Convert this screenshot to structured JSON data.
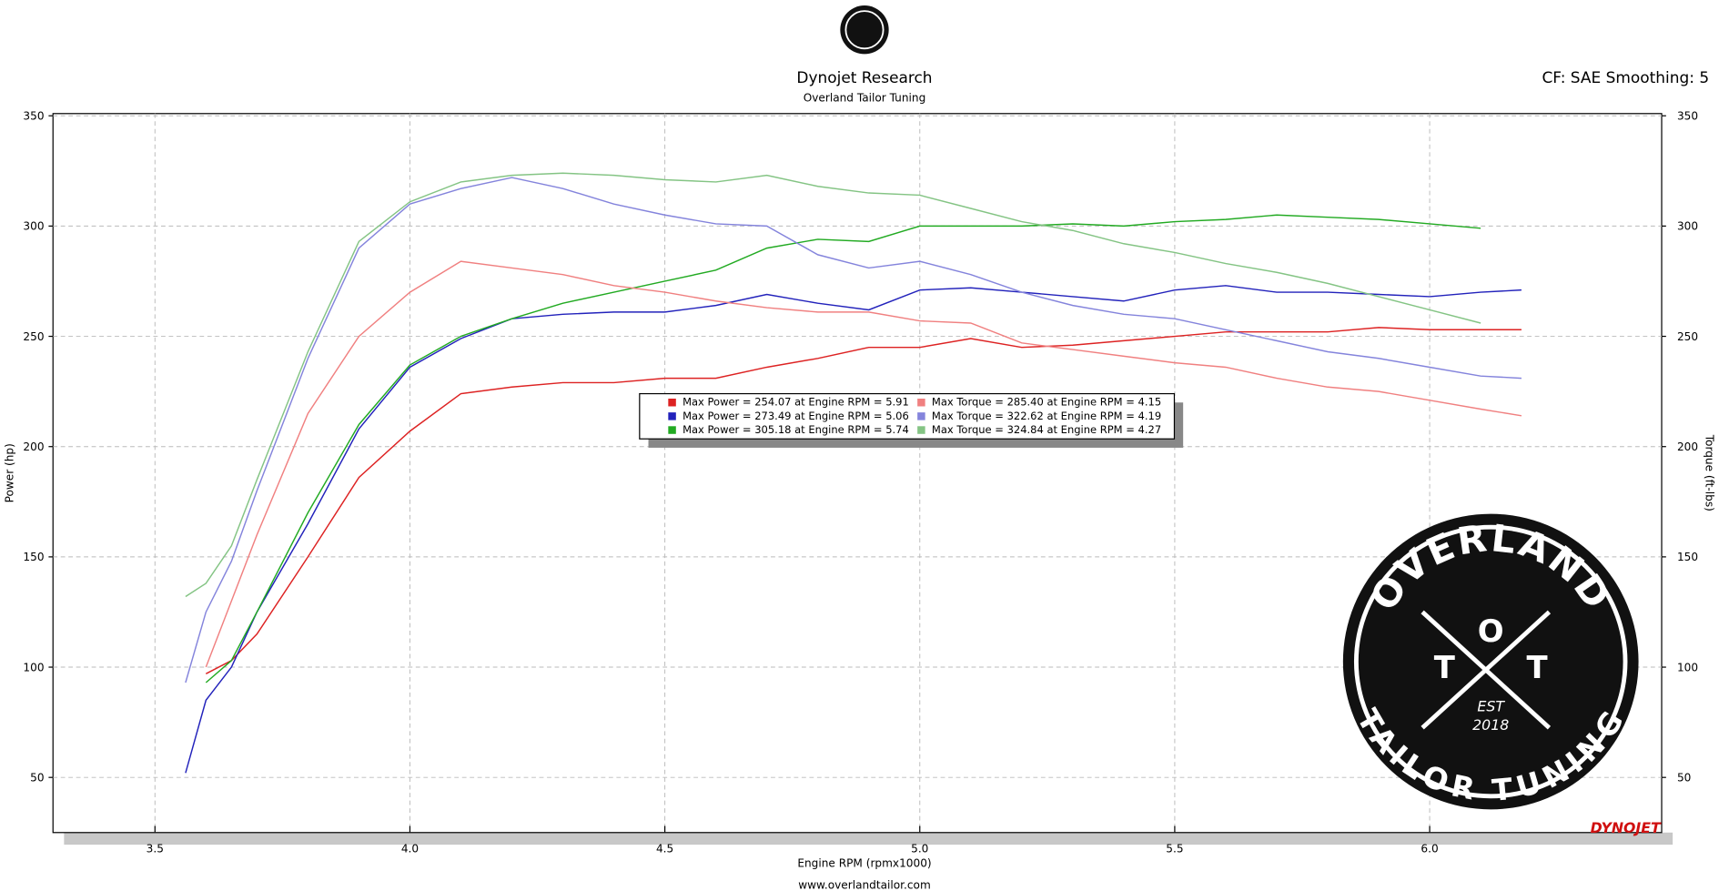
{
  "chart_data": {
    "type": "line",
    "title": "Dynojet Research",
    "subtitle": "Overland Tailor Tuning",
    "settings_label": "CF: SAE Smoothing: 5",
    "xlabel": "Engine RPM (rpmx1000)",
    "ylabel": "Power (hp)",
    "y2label": "Torque (ft-lbs)",
    "footer": "www.overlandtailor.com",
    "brand": "DYNOJET",
    "xlim": [
      3.3,
      6.455
    ],
    "ylim": [
      25,
      351
    ],
    "y2lim": [
      25,
      351
    ],
    "xticks": [
      3.5,
      {
        "value": 4,
        "label": "4.0"
      },
      4.5,
      {
        "value": 5,
        "label": "5.0"
      },
      5.5,
      {
        "value": 6,
        "label": "6.0"
      }
    ],
    "yticks": [
      50,
      100,
      150,
      200,
      250,
      300,
      350
    ],
    "y2ticks": [
      50,
      100,
      150,
      200,
      250,
      300,
      350
    ],
    "grid": true,
    "x": [
      3.56,
      3.6,
      3.65,
      3.7,
      3.8,
      3.9,
      4.0,
      4.1,
      4.2,
      4.3,
      4.4,
      4.5,
      4.6,
      4.7,
      4.8,
      4.9,
      5.0,
      5.1,
      5.2,
      5.3,
      5.4,
      5.5,
      5.6,
      5.7,
      5.8,
      5.9,
      6.0,
      6.1,
      6.18
    ],
    "series": [
      {
        "name": "Max Power = 254.07 at Engine RPM = 5.91",
        "color": "#dd2222",
        "values": [
          null,
          97,
          103,
          115,
          150,
          186,
          207,
          224,
          227,
          229,
          229,
          231,
          231,
          236,
          240,
          245,
          245,
          249,
          245,
          246,
          248,
          250,
          252,
          252,
          252,
          254,
          253,
          253,
          253
        ]
      },
      {
        "name": "Max Power = 273.49 at Engine RPM = 5.06",
        "color": "#2222bb",
        "values": [
          52,
          85,
          100,
          125,
          165,
          208,
          236,
          249,
          258,
          260,
          261,
          261,
          264,
          269,
          265,
          262,
          271,
          272,
          270,
          268,
          266,
          271,
          273,
          270,
          270,
          269,
          268,
          270,
          271
        ]
      },
      {
        "name": "Max Power = 305.18 at Engine RPM = 5.74",
        "color": "#22aa22",
        "values": [
          null,
          93,
          103,
          125,
          170,
          210,
          237,
          250,
          258,
          265,
          270,
          275,
          280,
          290,
          294,
          293,
          300,
          300,
          300,
          301,
          300,
          302,
          303,
          305,
          304,
          303,
          301,
          299,
          null
        ]
      },
      {
        "name": "Max Torque = 285.40 at Engine RPM = 4.15",
        "color": "#f08080",
        "axis": "y2",
        "values": [
          null,
          100,
          130,
          160,
          215,
          250,
          270,
          284,
          281,
          278,
          273,
          270,
          266,
          263,
          261,
          261,
          257,
          256,
          247,
          244,
          241,
          238,
          236,
          231,
          227,
          225,
          221,
          217,
          214
        ]
      },
      {
        "name": "Max Torque = 322.62 at Engine RPM = 4.19",
        "color": "#8484dc",
        "axis": "y2",
        "values": [
          93,
          125,
          148,
          180,
          240,
          290,
          310,
          317,
          322,
          317,
          310,
          305,
          301,
          300,
          287,
          281,
          284,
          278,
          270,
          264,
          260,
          258,
          253,
          248,
          243,
          240,
          236,
          232,
          231
        ]
      },
      {
        "name": "Max Torque = 324.84 at Engine RPM = 4.27",
        "color": "#84c484",
        "axis": "y2",
        "values": [
          132,
          138,
          155,
          185,
          243,
          293,
          311,
          320,
          323,
          324,
          323,
          321,
          320,
          323,
          318,
          315,
          314,
          308,
          302,
          298,
          292,
          288,
          283,
          279,
          274,
          268,
          262,
          256,
          null
        ]
      }
    ]
  },
  "logo": {
    "top": "OVERLAND",
    "left": "T",
    "center": "O",
    "right": "T",
    "est": "EST",
    "year": "2018",
    "bottom": "TAILOR TUNING"
  }
}
